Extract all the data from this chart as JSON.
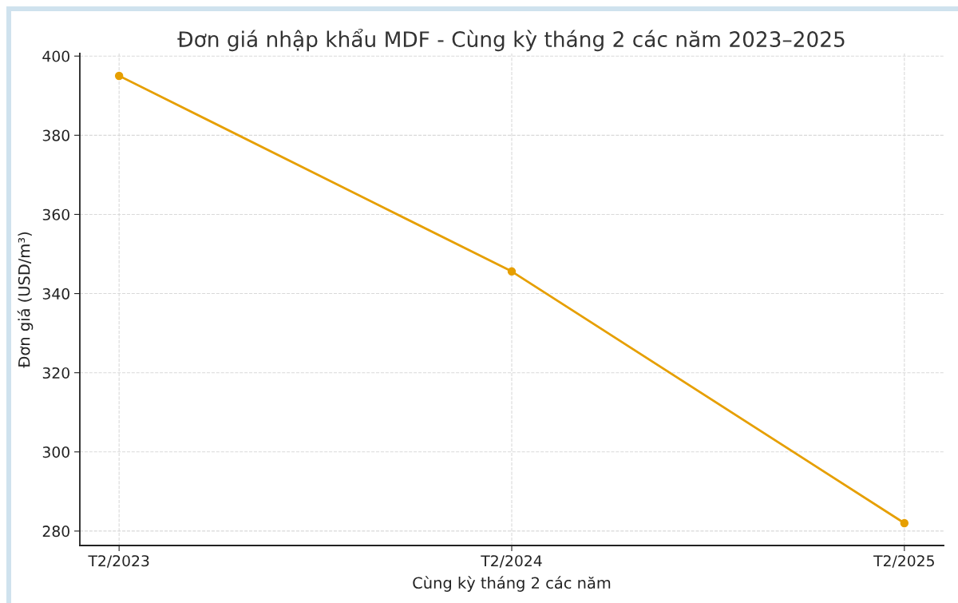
{
  "chart_data": {
    "type": "line",
    "title": "Đơn giá nhập khẩu MDF - Cùng kỳ tháng 2 các năm 2023–2025",
    "xlabel": "Cùng kỳ tháng 2 các năm",
    "ylabel": "Đơn giá (USD/m³)",
    "categories": [
      "T2/2023",
      "T2/2024",
      "T2/2025"
    ],
    "series": [
      {
        "color": "#e69f00",
        "values": [
          395,
          345.6,
          282
        ]
      }
    ],
    "ylim": [
      276.35,
      400.65
    ],
    "yticks": [
      280,
      300,
      320,
      340,
      360,
      380,
      400
    ],
    "grid": true,
    "marker": "circle",
    "line_style": "solid"
  }
}
